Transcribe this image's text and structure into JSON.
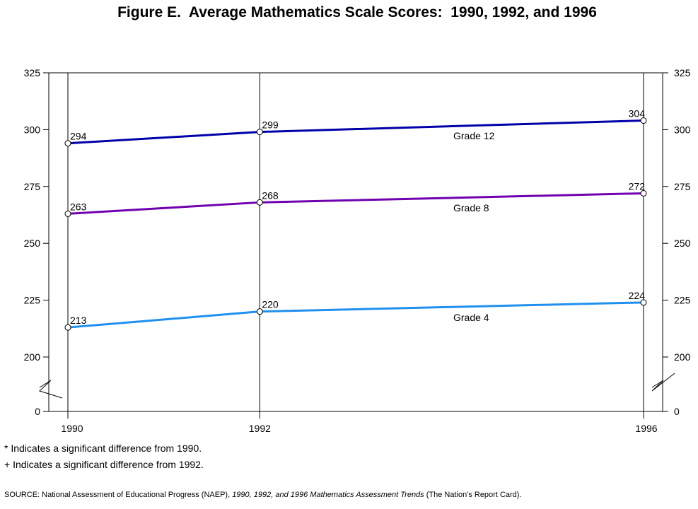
{
  "chart_data": {
    "type": "line",
    "title": "Figure E.  Average Mathematics Scale Scores:  1990, 1992, and 1996",
    "x": [
      "1990",
      "1992",
      "1996"
    ],
    "ylim": [
      0,
      325
    ],
    "axis_break": "between 0 and 200",
    "y_ticks": [
      "325",
      "300",
      "275",
      "250",
      "225",
      "200",
      "0"
    ],
    "right_axis": true,
    "grid": "vertical lines at each year",
    "legend": "inline labels",
    "series": [
      {
        "name": "Grade 12",
        "values": [
          294,
          299,
          304
        ],
        "labels": [
          "294",
          "299",
          "304"
        ],
        "color": "#0000a8"
      },
      {
        "name": "Grade 8",
        "values": [
          263,
          268,
          272
        ],
        "labels": [
          "263",
          "268",
          "272"
        ],
        "color": "#7000b0"
      },
      {
        "name": "Grade 4",
        "values": [
          213,
          220,
          224
        ],
        "labels": [
          "213",
          "220",
          "224"
        ],
        "color": "#2090f0"
      }
    ]
  },
  "footnotes": {
    "asterisk": "*  Indicates a significant difference from 1990.",
    "plus": "+ Indicates a significant difference from 1992."
  },
  "source": {
    "prefix": "SOURCE: National Assessment of Educational Progress (NAEP), ",
    "title_italic": "1990, 1992, and 1996 Mathematics Assessment Trends",
    "suffix": " (The Nation's Report Card)."
  }
}
